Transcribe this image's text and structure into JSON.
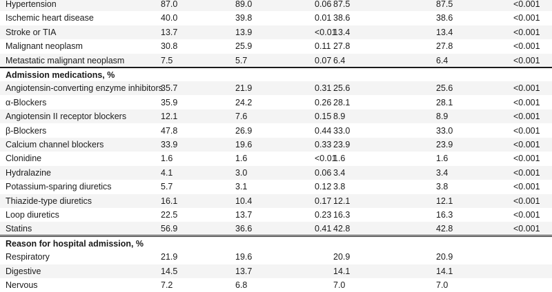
{
  "rows": [
    {
      "type": "data",
      "label": "Hypertension",
      "cells": [
        "87.0",
        "89.0",
        "0.06",
        "87.5",
        "87.5",
        "<0.001"
      ]
    },
    {
      "type": "data",
      "label": "Ischemic heart disease",
      "cells": [
        "40.0",
        "39.8",
        "0.01",
        "38.6",
        "38.6",
        "<0.001"
      ]
    },
    {
      "type": "data",
      "label": "Stroke or TIA",
      "cells": [
        "13.7",
        "13.9",
        "<0.01",
        "13.4",
        "13.4",
        "<0.001"
      ]
    },
    {
      "type": "data",
      "label": "Malignant neoplasm",
      "cells": [
        "30.8",
        "25.9",
        "0.11",
        "27.8",
        "27.8",
        "<0.001"
      ]
    },
    {
      "type": "data",
      "label": "Metastatic malignant neoplasm",
      "cells": [
        "7.5",
        "5.7",
        "0.07",
        "6.4",
        "6.4",
        "<0.001"
      ]
    },
    {
      "type": "section",
      "label": "Admission medications, %",
      "cells": [
        "",
        "",
        "",
        "",
        "",
        ""
      ]
    },
    {
      "type": "data",
      "label": "Angiotensin-converting enzyme inhibitors",
      "cells": [
        "35.7",
        "21.9",
        "0.31",
        "25.6",
        "25.6",
        "<0.001"
      ]
    },
    {
      "type": "data",
      "label": "α-Blockers",
      "cells": [
        "35.9",
        "24.2",
        "0.26",
        "28.1",
        "28.1",
        "<0.001"
      ]
    },
    {
      "type": "data",
      "label": "Angiotensin II receptor blockers",
      "cells": [
        "12.1",
        "7.6",
        "0.15",
        "8.9",
        "8.9",
        "<0.001"
      ]
    },
    {
      "type": "data",
      "label": "β-Blockers",
      "cells": [
        "47.8",
        "26.9",
        "0.44",
        "33.0",
        "33.0",
        "<0.001"
      ]
    },
    {
      "type": "data",
      "label": "Calcium channel blockers",
      "cells": [
        "33.9",
        "19.6",
        "0.33",
        "23.9",
        "23.9",
        "<0.001"
      ]
    },
    {
      "type": "data",
      "label": "Clonidine",
      "cells": [
        "1.6",
        "1.6",
        "<0.01",
        "1.6",
        "1.6",
        "<0.001"
      ]
    },
    {
      "type": "data",
      "label": "Hydralazine",
      "cells": [
        "4.1",
        "3.0",
        "0.06",
        "3.4",
        "3.4",
        "<0.001"
      ]
    },
    {
      "type": "data",
      "label": "Potassium-sparing diuretics",
      "cells": [
        "5.7",
        "3.1",
        "0.12",
        "3.8",
        "3.8",
        "<0.001"
      ]
    },
    {
      "type": "data",
      "label": "Thiazide-type diuretics",
      "cells": [
        "16.1",
        "10.4",
        "0.17",
        "12.1",
        "12.1",
        "<0.001"
      ]
    },
    {
      "type": "data",
      "label": "Loop diuretics",
      "cells": [
        "22.5",
        "13.7",
        "0.23",
        "16.3",
        "16.3",
        "<0.001"
      ]
    },
    {
      "type": "data",
      "label": "Statins",
      "cells": [
        "56.9",
        "36.6",
        "0.41",
        "42.8",
        "42.8",
        "<0.001"
      ]
    },
    {
      "type": "section",
      "label": "Reason for hospital admission, %",
      "cells": [
        "",
        "",
        "",
        "",
        "",
        ""
      ]
    },
    {
      "type": "data",
      "label": "Respiratory",
      "cells": [
        "21.9",
        "19.6",
        "",
        "20.9",
        "20.9",
        ""
      ]
    },
    {
      "type": "data",
      "label": "Digestive",
      "cells": [
        "14.5",
        "13.7",
        "",
        "14.1",
        "14.1",
        ""
      ]
    },
    {
      "type": "data",
      "label": "Nervous",
      "cells": [
        "7.2",
        "6.8",
        "",
        "7.0",
        "7.0",
        ""
      ]
    }
  ]
}
